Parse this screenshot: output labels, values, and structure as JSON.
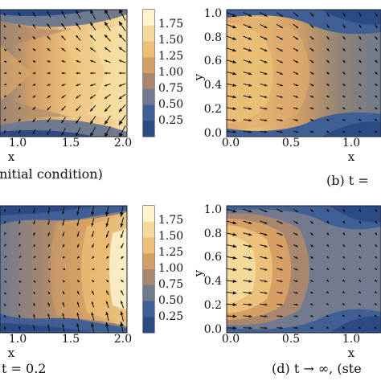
{
  "colorbar": {
    "ticks": [
      "1.75",
      "1.50",
      "1.25",
      "1.00",
      "0.75",
      "0.50",
      "0.25"
    ],
    "colors": [
      "#fdf3cf",
      "#f5d99a",
      "#ecc078",
      "#d6a064",
      "#a8876e",
      "#717a8e",
      "#3f5f95",
      "#2c4a86"
    ]
  },
  "captions": {
    "a": "initial condition)",
    "b": "(b) t =",
    "c": "t = 0.2",
    "d": "(d) t → ∞, (ste"
  },
  "panels": {
    "a": {
      "xlabel": "x",
      "xticks": [
        "1.0",
        "1.5",
        "2.0"
      ]
    },
    "b": {
      "xlabel": "x",
      "ylabel": "y",
      "xticks": [
        "0.0",
        "0.5",
        "1.0"
      ],
      "yticks": [
        "1.0",
        "0.8",
        "0.6",
        "0.4",
        "0.2",
        "0.0"
      ]
    },
    "c": {
      "xlabel": "x",
      "xticks": [
        "1.0",
        "1.5",
        "2.0"
      ]
    },
    "d": {
      "xlabel": "x",
      "ylabel": "y",
      "xticks": [
        "0.0",
        "0.5",
        "1.0"
      ],
      "yticks": [
        "1.0",
        "0.8",
        "0.6",
        "0.4",
        "0.2",
        "0.0"
      ]
    }
  }
}
